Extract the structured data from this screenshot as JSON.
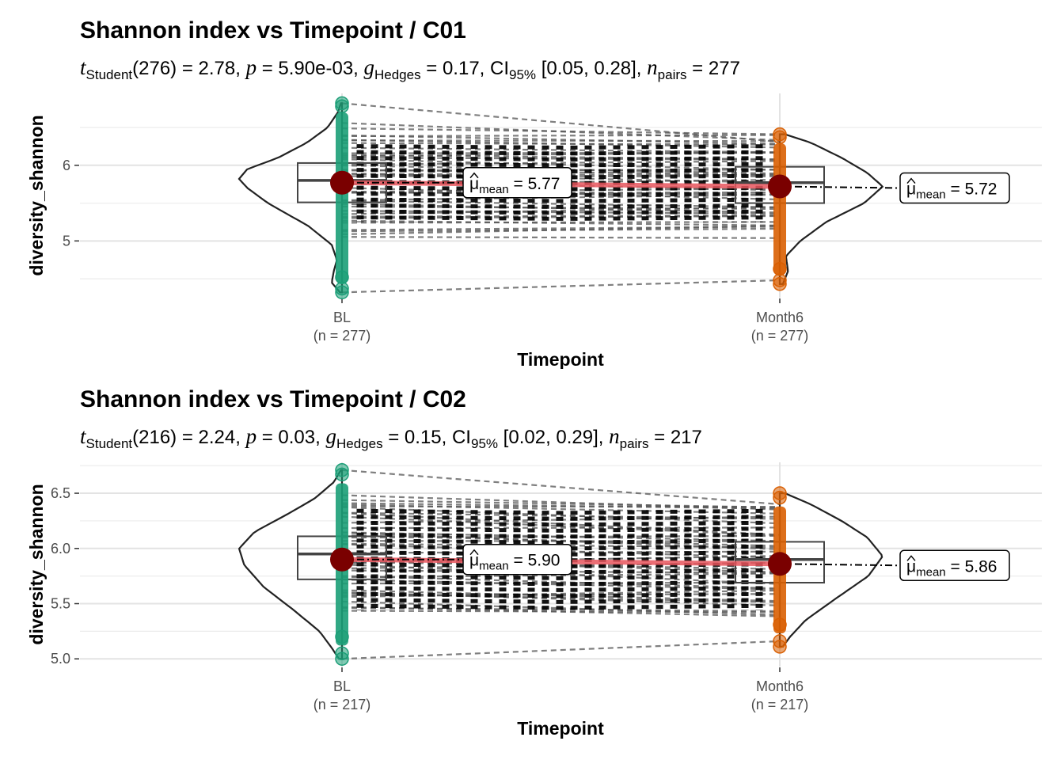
{
  "chart_data": [
    {
      "type": "violin",
      "title": "Shannon index vs Timepoint / C01",
      "subtitle": {
        "t_label": "t",
        "t_sub": "Student",
        "t_df": "(276) = 2.78, ",
        "p_label": "p",
        "p_val": " = 5.90e-03, ",
        "g_label": "g",
        "g_sub": "Hedges",
        "g_val": " = 0.17, CI",
        "ci_sub": "95%",
        "ci_val": " [0.05, 0.28], ",
        "n_label": "n",
        "n_sub": "pairs",
        "n_val": " = 277"
      },
      "xlabel": "Timepoint",
      "ylabel": "diversity_shannon",
      "categories": [
        "BL",
        "Month6"
      ],
      "category_counts": [
        "(n = 277)",
        "(n = 277)"
      ],
      "ylim": [
        4.25,
        6.95
      ],
      "yticks": [
        5,
        6
      ],
      "ytick_labels": [
        "5",
        "6"
      ],
      "means": [
        5.77,
        5.72
      ],
      "mean_labels": [
        "5.77",
        "5.72"
      ],
      "mean_label_prefix": "μ",
      "mean_label_sub": "mean",
      "box": [
        {
          "q1": 5.51,
          "median": 5.8,
          "q3": 6.03
        },
        {
          "q1": 5.5,
          "median": 5.77,
          "q3": 5.98
        }
      ],
      "ranges": [
        [
          4.32,
          6.82
        ],
        [
          4.43,
          6.41
        ]
      ],
      "violin_profile": [
        [
          [
            4.32,
            0.02
          ],
          [
            4.45,
            0.1
          ],
          [
            4.6,
            0.08
          ],
          [
            4.75,
            0.05
          ],
          [
            4.95,
            0.1
          ],
          [
            5.2,
            0.33
          ],
          [
            5.5,
            0.72
          ],
          [
            5.7,
            0.92
          ],
          [
            5.82,
            1.0
          ],
          [
            5.95,
            0.92
          ],
          [
            6.1,
            0.62
          ],
          [
            6.3,
            0.34
          ],
          [
            6.5,
            0.14
          ],
          [
            6.7,
            0.04
          ],
          [
            6.82,
            0.01
          ]
        ],
        [
          [
            4.43,
            0.03
          ],
          [
            4.6,
            0.08
          ],
          [
            4.8,
            0.06
          ],
          [
            5.0,
            0.2
          ],
          [
            5.25,
            0.45
          ],
          [
            5.5,
            0.82
          ],
          [
            5.72,
            1.0
          ],
          [
            5.9,
            0.85
          ],
          [
            6.1,
            0.6
          ],
          [
            6.3,
            0.3
          ],
          [
            6.41,
            0.05
          ]
        ]
      ],
      "colors": {
        "bl": "#1b9e77",
        "month6": "#d95f02",
        "mean_point": "#7a0000",
        "mean_line": "#e8555d"
      }
    },
    {
      "type": "violin",
      "title": "Shannon index vs Timepoint / C02",
      "subtitle": {
        "t_label": "t",
        "t_sub": "Student",
        "t_df": "(216) = 2.24, ",
        "p_label": "p",
        "p_val": " = 0.03, ",
        "g_label": "g",
        "g_sub": "Hedges",
        "g_val": " = 0.15, CI",
        "ci_sub": "95%",
        "ci_val": " [0.02, 0.29], ",
        "n_label": "n",
        "n_sub": "pairs",
        "n_val": " = 217"
      },
      "xlabel": "Timepoint",
      "ylabel": "diversity_shannon",
      "categories": [
        "BL",
        "Month6"
      ],
      "category_counts": [
        "(n = 217)",
        "(n = 217)"
      ],
      "ylim": [
        4.93,
        6.78
      ],
      "yticks": [
        5.0,
        5.5,
        6.0,
        6.5
      ],
      "ytick_labels": [
        "5.0",
        "5.5",
        "6.0",
        "6.5"
      ],
      "means": [
        5.9,
        5.86
      ],
      "mean_labels": [
        "5.90",
        "5.86"
      ],
      "mean_label_prefix": "μ",
      "mean_label_sub": "mean",
      "box": [
        {
          "q1": 5.72,
          "median": 5.95,
          "q3": 6.11
        },
        {
          "q1": 5.69,
          "median": 5.9,
          "q3": 6.06
        }
      ],
      "ranges": [
        [
          5.0,
          6.71
        ],
        [
          5.11,
          6.5
        ]
      ],
      "violin_profile": [
        [
          [
            5.0,
            0.03
          ],
          [
            5.1,
            0.1
          ],
          [
            5.25,
            0.22
          ],
          [
            5.45,
            0.48
          ],
          [
            5.65,
            0.76
          ],
          [
            5.85,
            0.95
          ],
          [
            6.0,
            1.0
          ],
          [
            6.15,
            0.85
          ],
          [
            6.3,
            0.55
          ],
          [
            6.45,
            0.27
          ],
          [
            6.6,
            0.08
          ],
          [
            6.71,
            0.01
          ]
        ],
        [
          [
            5.11,
            0.03
          ],
          [
            5.2,
            0.1
          ],
          [
            5.35,
            0.25
          ],
          [
            5.55,
            0.55
          ],
          [
            5.75,
            0.86
          ],
          [
            5.93,
            1.0
          ],
          [
            6.1,
            0.85
          ],
          [
            6.25,
            0.6
          ],
          [
            6.4,
            0.3
          ],
          [
            6.5,
            0.05
          ]
        ]
      ],
      "colors": {
        "bl": "#1b9e77",
        "month6": "#d95f02",
        "mean_point": "#7a0000",
        "mean_line": "#e8555d"
      }
    }
  ]
}
